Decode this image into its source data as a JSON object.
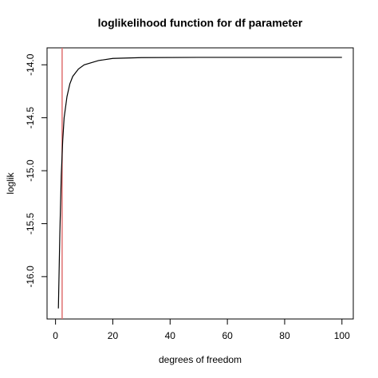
{
  "chart_data": {
    "type": "line",
    "title": "loglikelihood function for df parameter",
    "xlabel": "degrees of freedom",
    "ylabel": "loglik",
    "x": [
      1,
      1.5,
      2,
      2.5,
      3,
      4,
      5,
      6,
      8,
      10,
      15,
      20,
      30,
      50,
      100
    ],
    "values": [
      -16.3,
      -15.6,
      -15.05,
      -14.72,
      -14.5,
      -14.3,
      -14.18,
      -14.11,
      -14.04,
      -14.0,
      -13.96,
      -13.94,
      -13.932,
      -13.93,
      -13.93
    ],
    "color": "#000000",
    "vline": {
      "x": 2.3,
      "color": "#e07070"
    },
    "xlim": [
      -2.96,
      103.96
    ],
    "ylim": [
      -16.4,
      -13.84
    ],
    "xticks": [
      0,
      20,
      40,
      60,
      80,
      100
    ],
    "yticks": [
      {
        "value": -16,
        "label": "-16.0"
      },
      -15.5,
      {
        "value": -15,
        "label": "-15.0"
      },
      -14.5,
      {
        "value": -14,
        "label": "-14.0"
      }
    ]
  }
}
